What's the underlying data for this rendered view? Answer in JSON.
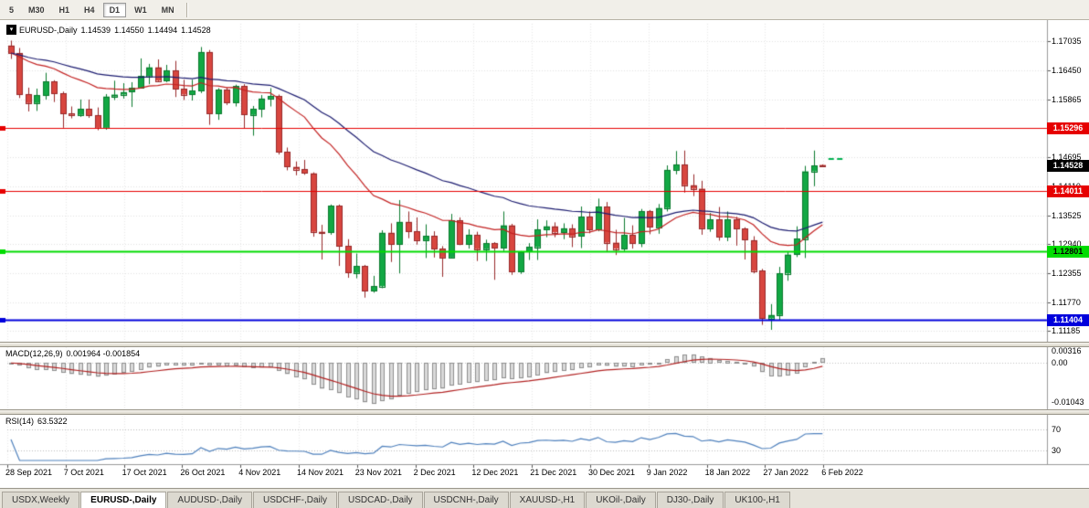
{
  "toolbar": {
    "timeframes": [
      "5",
      "M30",
      "H1",
      "H4",
      "D1",
      "W1",
      "MN"
    ],
    "active": "D1"
  },
  "chart": {
    "title": "EURUSD-,Daily",
    "ohlc": {
      "open": "1.14539",
      "high": "1.14550",
      "low": "1.14494",
      "close": "1.14528"
    }
  },
  "price_axis": {
    "ticks": [
      "1.17035",
      "1.16450",
      "1.15865",
      "1.15280",
      "1.14695",
      "1.14110",
      "1.13525",
      "1.12940",
      "1.12355",
      "1.11770",
      "1.11185"
    ]
  },
  "levels": [
    {
      "label": "1.15296",
      "value": 1.15296,
      "color": "#e60000",
      "line_width": 1,
      "text_color": "#ffffff"
    },
    {
      "label": "1.14011",
      "value": 1.14011,
      "color": "#e60000",
      "line_width": 1,
      "text_color": "#ffffff"
    },
    {
      "label": "1.12801",
      "value": 1.12801,
      "color": "#00dc00",
      "line_width": 2,
      "text_color": "#000000"
    },
    {
      "label": "1.11404",
      "value": 1.11404,
      "color": "#0000dc",
      "line_width": 2,
      "text_color": "#ffffff"
    }
  ],
  "current_price": {
    "label": "1.14528",
    "value": 1.14528,
    "bg": "#000000",
    "text_color": "#ffffff"
  },
  "macd_panel": {
    "name": "MACD(12,26,9)",
    "values": "0.001964 -0.001854",
    "axis_max": "0.00316",
    "axis_zero": "0.00",
    "axis_min": "-0.01043"
  },
  "rsi_panel": {
    "name": "RSI(14)",
    "value": "63.5322",
    "level_high": "70",
    "level_low": "30"
  },
  "time_axis": [
    "28 Sep 2021",
    "7 Oct 2021",
    "17 Oct 2021",
    "26 Oct 2021",
    "4 Nov 2021",
    "14 Nov 2021",
    "23 Nov 2021",
    "2 Dec 2021",
    "12 Dec 2021",
    "21 Dec 2021",
    "30 Dec 2021",
    "9 Jan 2022",
    "18 Jan 2022",
    "27 Jan 2022",
    "6 Feb 2022"
  ],
  "tabs": {
    "items": [
      "USDX,Weekly",
      "EURUSD-,Daily",
      "AUDUSD-,Daily",
      "USDCHF-,Daily",
      "USDCAD-,Daily",
      "USDCNH-,Daily",
      "XAUUSD-,H1",
      "UKOil-,Daily",
      "DJ30-,Daily",
      "UK100-,H1"
    ],
    "active_index": 1
  },
  "chart_data": {
    "type": "candlestick",
    "symbol": "EURUSD-",
    "timeframe": "Daily",
    "price_range": [
      1.1097,
      1.1739
    ],
    "up_color": "#12a844",
    "down_color": "#d8463f",
    "candles": [
      [
        1.1695,
        1.1705,
        1.1668,
        1.168
      ],
      [
        1.168,
        1.169,
        1.1589,
        1.1597
      ],
      [
        1.1597,
        1.161,
        1.1562,
        1.1579
      ],
      [
        1.1579,
        1.1608,
        1.1563,
        1.1595
      ],
      [
        1.1595,
        1.164,
        1.1586,
        1.1622
      ],
      [
        1.1622,
        1.1625,
        1.1581,
        1.1598
      ],
      [
        1.1598,
        1.1602,
        1.1529,
        1.1558
      ],
      [
        1.1558,
        1.1572,
        1.1548,
        1.1555
      ],
      [
        1.1555,
        1.1586,
        1.1551,
        1.1567
      ],
      [
        1.1567,
        1.1586,
        1.1549,
        1.1554
      ],
      [
        1.1554,
        1.157,
        1.1524,
        1.1529
      ],
      [
        1.1529,
        1.1597,
        1.1525,
        1.1592
      ],
      [
        1.1592,
        1.1624,
        1.1585,
        1.1596
      ],
      [
        1.1596,
        1.1619,
        1.1588,
        1.1601
      ],
      [
        1.1601,
        1.1621,
        1.1571,
        1.1609
      ],
      [
        1.1609,
        1.1669,
        1.1609,
        1.1633
      ],
      [
        1.1633,
        1.1658,
        1.1617,
        1.1651
      ],
      [
        1.1651,
        1.1667,
        1.1622,
        1.1624
      ],
      [
        1.1624,
        1.1656,
        1.1621,
        1.1645
      ],
      [
        1.1645,
        1.1664,
        1.1591,
        1.1608
      ],
      [
        1.1608,
        1.1626,
        1.1585,
        1.1596
      ],
      [
        1.1596,
        1.1626,
        1.1584,
        1.1604
      ],
      [
        1.1604,
        1.1692,
        1.1599,
        1.1682
      ],
      [
        1.1682,
        1.1686,
        1.1535,
        1.1558
      ],
      [
        1.1558,
        1.1609,
        1.1545,
        1.1606
      ],
      [
        1.1606,
        1.161,
        1.1575,
        1.158
      ],
      [
        1.158,
        1.1616,
        1.1572,
        1.1613
      ],
      [
        1.1613,
        1.1617,
        1.1527,
        1.1555
      ],
      [
        1.1555,
        1.1573,
        1.1513,
        1.1567
      ],
      [
        1.1567,
        1.1595,
        1.155,
        1.1588
      ],
      [
        1.1588,
        1.1609,
        1.1572,
        1.1593
      ],
      [
        1.1593,
        1.1596,
        1.1475,
        1.148
      ],
      [
        1.148,
        1.1489,
        1.1443,
        1.145
      ],
      [
        1.145,
        1.1461,
        1.1433,
        1.1445
      ],
      [
        1.1445,
        1.1464,
        1.1434,
        1.1437
      ],
      [
        1.1437,
        1.1439,
        1.1309,
        1.1319
      ],
      [
        1.1319,
        1.1333,
        1.1263,
        1.1317
      ],
      [
        1.1317,
        1.1374,
        1.1313,
        1.1371
      ],
      [
        1.1371,
        1.1374,
        1.125,
        1.129
      ],
      [
        1.129,
        1.1304,
        1.1226,
        1.1236
      ],
      [
        1.1236,
        1.1275,
        1.1225,
        1.125
      ],
      [
        1.125,
        1.1252,
        1.1186,
        1.12
      ],
      [
        1.12,
        1.123,
        1.1196,
        1.1209
      ],
      [
        1.1209,
        1.1322,
        1.1205,
        1.1317
      ],
      [
        1.1317,
        1.1336,
        1.1258,
        1.1294
      ],
      [
        1.1294,
        1.1383,
        1.1235,
        1.1339
      ],
      [
        1.1339,
        1.136,
        1.1306,
        1.132
      ],
      [
        1.132,
        1.1348,
        1.1293,
        1.1302
      ],
      [
        1.1302,
        1.1334,
        1.1266,
        1.1311
      ],
      [
        1.1311,
        1.132,
        1.1267,
        1.1285
      ],
      [
        1.1285,
        1.129,
        1.1228,
        1.1267
      ],
      [
        1.1267,
        1.1355,
        1.1265,
        1.1342
      ],
      [
        1.1342,
        1.1348,
        1.1292,
        1.1294
      ],
      [
        1.1294,
        1.1324,
        1.1285,
        1.1313
      ],
      [
        1.1313,
        1.1319,
        1.126,
        1.1284
      ],
      [
        1.1284,
        1.1303,
        1.126,
        1.1296
      ],
      [
        1.1296,
        1.1298,
        1.1222,
        1.1287
      ],
      [
        1.1287,
        1.136,
        1.128,
        1.1332
      ],
      [
        1.1332,
        1.1335,
        1.1232,
        1.1239
      ],
      [
        1.1239,
        1.128,
        1.1234,
        1.1278
      ],
      [
        1.1278,
        1.1296,
        1.1262,
        1.1288
      ],
      [
        1.1288,
        1.1344,
        1.1262,
        1.1324
      ],
      [
        1.1324,
        1.1342,
        1.1308,
        1.133
      ],
      [
        1.133,
        1.1338,
        1.1308,
        1.1318
      ],
      [
        1.1318,
        1.1336,
        1.1304,
        1.1326
      ],
      [
        1.1326,
        1.1334,
        1.1288,
        1.131
      ],
      [
        1.131,
        1.137,
        1.1286,
        1.1349
      ],
      [
        1.1349,
        1.136,
        1.1316,
        1.1324
      ],
      [
        1.1324,
        1.1386,
        1.132,
        1.137
      ],
      [
        1.137,
        1.1379,
        1.1279,
        1.1297
      ],
      [
        1.1297,
        1.1323,
        1.1272,
        1.1285
      ],
      [
        1.1285,
        1.1347,
        1.128,
        1.1312
      ],
      [
        1.1312,
        1.1332,
        1.1285,
        1.1295
      ],
      [
        1.1295,
        1.1365,
        1.1288,
        1.136
      ],
      [
        1.136,
        1.1363,
        1.1314,
        1.1328
      ],
      [
        1.1328,
        1.1375,
        1.1315,
        1.1367
      ],
      [
        1.1367,
        1.1453,
        1.136,
        1.1444
      ],
      [
        1.1444,
        1.1482,
        1.1435,
        1.1455
      ],
      [
        1.1455,
        1.1483,
        1.1398,
        1.1413
      ],
      [
        1.1413,
        1.1435,
        1.1391,
        1.1406
      ],
      [
        1.1406,
        1.1422,
        1.1313,
        1.1326
      ],
      [
        1.1326,
        1.1357,
        1.1319,
        1.1344
      ],
      [
        1.1344,
        1.1369,
        1.1301,
        1.1309
      ],
      [
        1.1309,
        1.136,
        1.13,
        1.1344
      ],
      [
        1.1344,
        1.1349,
        1.1291,
        1.1325
      ],
      [
        1.1325,
        1.1328,
        1.1263,
        1.1302
      ],
      [
        1.1302,
        1.131,
        1.1235,
        1.124
      ],
      [
        1.124,
        1.1244,
        1.1131,
        1.1144
      ],
      [
        1.1144,
        1.1173,
        1.1121,
        1.1151
      ],
      [
        1.1151,
        1.1248,
        1.1141,
        1.1235
      ],
      [
        1.1235,
        1.1279,
        1.122,
        1.1273
      ],
      [
        1.1273,
        1.133,
        1.1268,
        1.1305
      ],
      [
        1.1305,
        1.1452,
        1.1266,
        1.1441
      ],
      [
        1.1441,
        1.1483,
        1.1411,
        1.1453
      ],
      [
        1.14539,
        1.1455,
        1.14494,
        1.14528
      ]
    ],
    "moving_averages": [
      {
        "period": 20,
        "method": "ema",
        "color": "#c32222"
      },
      {
        "period": 40,
        "method": "ema",
        "color": "#1c1c70"
      }
    ],
    "markers": [
      {
        "index_offset": 1,
        "price": 1.1466,
        "color": "#00b050"
      },
      {
        "index_offset": 2,
        "price": 1.1466,
        "color": "#00b050"
      }
    ],
    "indicators": [
      {
        "type": "macd",
        "fast": 12,
        "slow": 26,
        "signal": 9,
        "histogram_fill": "#d9d9d9",
        "histogram_stroke": "#8f8f8f",
        "signal_color": "#b22222"
      },
      {
        "type": "rsi",
        "period": 14,
        "color": "#4f81bd"
      }
    ]
  }
}
